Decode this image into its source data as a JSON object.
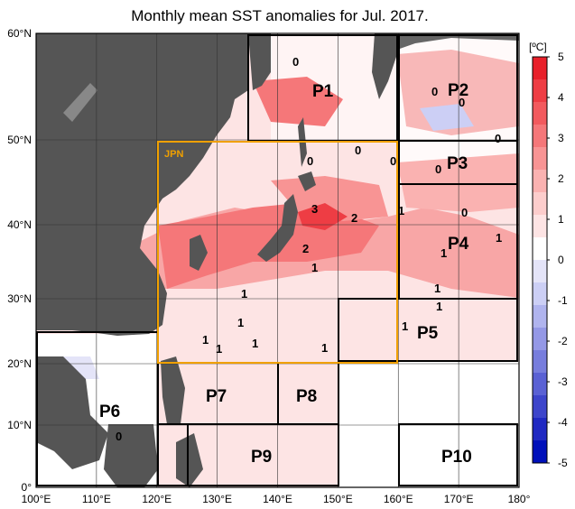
{
  "title": "Monthly mean SST anomalies for Jul. 2017.",
  "lat_labels": [
    "60°N",
    "50°N",
    "40°N",
    "30°N",
    "20°N",
    "10°N",
    "0°"
  ],
  "lon_labels": [
    "100°E",
    "110°E",
    "120°E",
    "130°E",
    "140°E",
    "150°E",
    "160°E",
    "170°E",
    "180°"
  ],
  "colorbar": {
    "unit": "[ºC]",
    "ticks": [
      "5",
      "4",
      "3",
      "2",
      "1",
      "0",
      "-1",
      "-2",
      "-3",
      "-4",
      "-5"
    ],
    "colors": [
      "#e8202a",
      "#ee3d44",
      "#f25a5e",
      "#f57779",
      "#f89494",
      "#fab2b1",
      "#fccdcc",
      "#fde4e4",
      "#ffffff",
      "#e4e4f8",
      "#cccff5",
      "#b0b4ee",
      "#9498e6",
      "#777ddd",
      "#5a61d4",
      "#3d45cb",
      "#2029c2",
      "#0010ba"
    ]
  },
  "regions": [
    "P1",
    "P2",
    "P3",
    "P4",
    "P5",
    "P6",
    "P7",
    "P8",
    "P9",
    "P10"
  ],
  "jpn_label": "JPN",
  "contour_labels": [
    "0",
    "0",
    "0",
    "0",
    "0",
    "0",
    "0",
    "0",
    "0",
    "0",
    "3",
    "2",
    "1",
    "1",
    "1",
    "1",
    "1",
    "1",
    "1",
    "1",
    "1",
    "1",
    "1",
    "1",
    "1",
    "2",
    "0"
  ],
  "colors": {
    "land": "#555555",
    "jpn_box": "#f0a000",
    "grid": "#333333"
  }
}
